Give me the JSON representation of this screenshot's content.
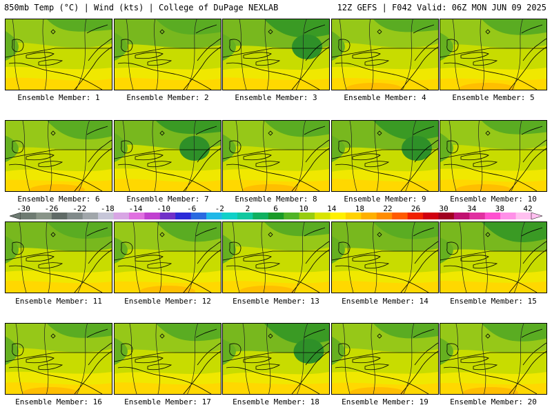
{
  "header": {
    "left": "850mb Temp (°C) | Wind (kts) | College of DuPage NEXLAB",
    "right": "12Z GEFS | F042 Valid: 06Z MON JUN 09 2025"
  },
  "panels": [
    {
      "label": "Ensemble Member: 1",
      "tone": 0.45
    },
    {
      "label": "Ensemble Member: 2",
      "tone": 0.5
    },
    {
      "label": "Ensemble Member: 3",
      "tone": 0.62
    },
    {
      "label": "Ensemble Member: 4",
      "tone": 0.4
    },
    {
      "label": "Ensemble Member: 5",
      "tone": 0.3
    },
    {
      "label": "Ensemble Member: 6",
      "tone": 0.38
    },
    {
      "label": "Ensemble Member: 7",
      "tone": 0.55
    },
    {
      "label": "Ensemble Member: 8",
      "tone": 0.3
    },
    {
      "label": "Ensemble Member: 9",
      "tone": 0.62
    },
    {
      "label": "Ensemble Member: 10",
      "tone": 0.35
    },
    {
      "label": "Ensemble Member: 11",
      "tone": 0.5
    },
    {
      "label": "Ensemble Member: 12",
      "tone": 0.35
    },
    {
      "label": "Ensemble Member: 13",
      "tone": 0.4
    },
    {
      "label": "Ensemble Member: 14",
      "tone": 0.5
    },
    {
      "label": "Ensemble Member: 15",
      "tone": 0.52
    },
    {
      "label": "Ensemble Member: 16",
      "tone": 0.4
    },
    {
      "label": "Ensemble Member: 17",
      "tone": 0.45
    },
    {
      "label": "Ensemble Member: 18",
      "tone": 0.55
    },
    {
      "label": "Ensemble Member: 19",
      "tone": 0.28
    },
    {
      "label": "Ensemble Member: 20",
      "tone": 0.28
    }
  ],
  "colorbar": {
    "ticks": [
      "-30",
      "-26",
      "-22",
      "-18",
      "-14",
      "-10",
      "-6",
      "-2",
      "2",
      "6",
      "10",
      "14",
      "18",
      "22",
      "26",
      "30",
      "34",
      "38",
      "42"
    ],
    "colors": [
      "#6e7b72",
      "#889488",
      "#5f6a66",
      "#808a8a",
      "#a0a6aa",
      "#c6c6d8",
      "#d8a6e4",
      "#e070e0",
      "#c040d0",
      "#7030c8",
      "#2a2ad8",
      "#2a6ae0",
      "#20b8e8",
      "#10d0c8",
      "#10c8a0",
      "#10b060",
      "#1a9a28",
      "#50b428",
      "#98cc10",
      "#d8e400",
      "#fff000",
      "#ffd200",
      "#ffb000",
      "#ff8c00",
      "#ff5a00",
      "#f02000",
      "#d00010",
      "#a00020",
      "#c01070",
      "#e030a0",
      "#ff50d0",
      "#ff90e8",
      "#ffc0f0"
    ]
  }
}
